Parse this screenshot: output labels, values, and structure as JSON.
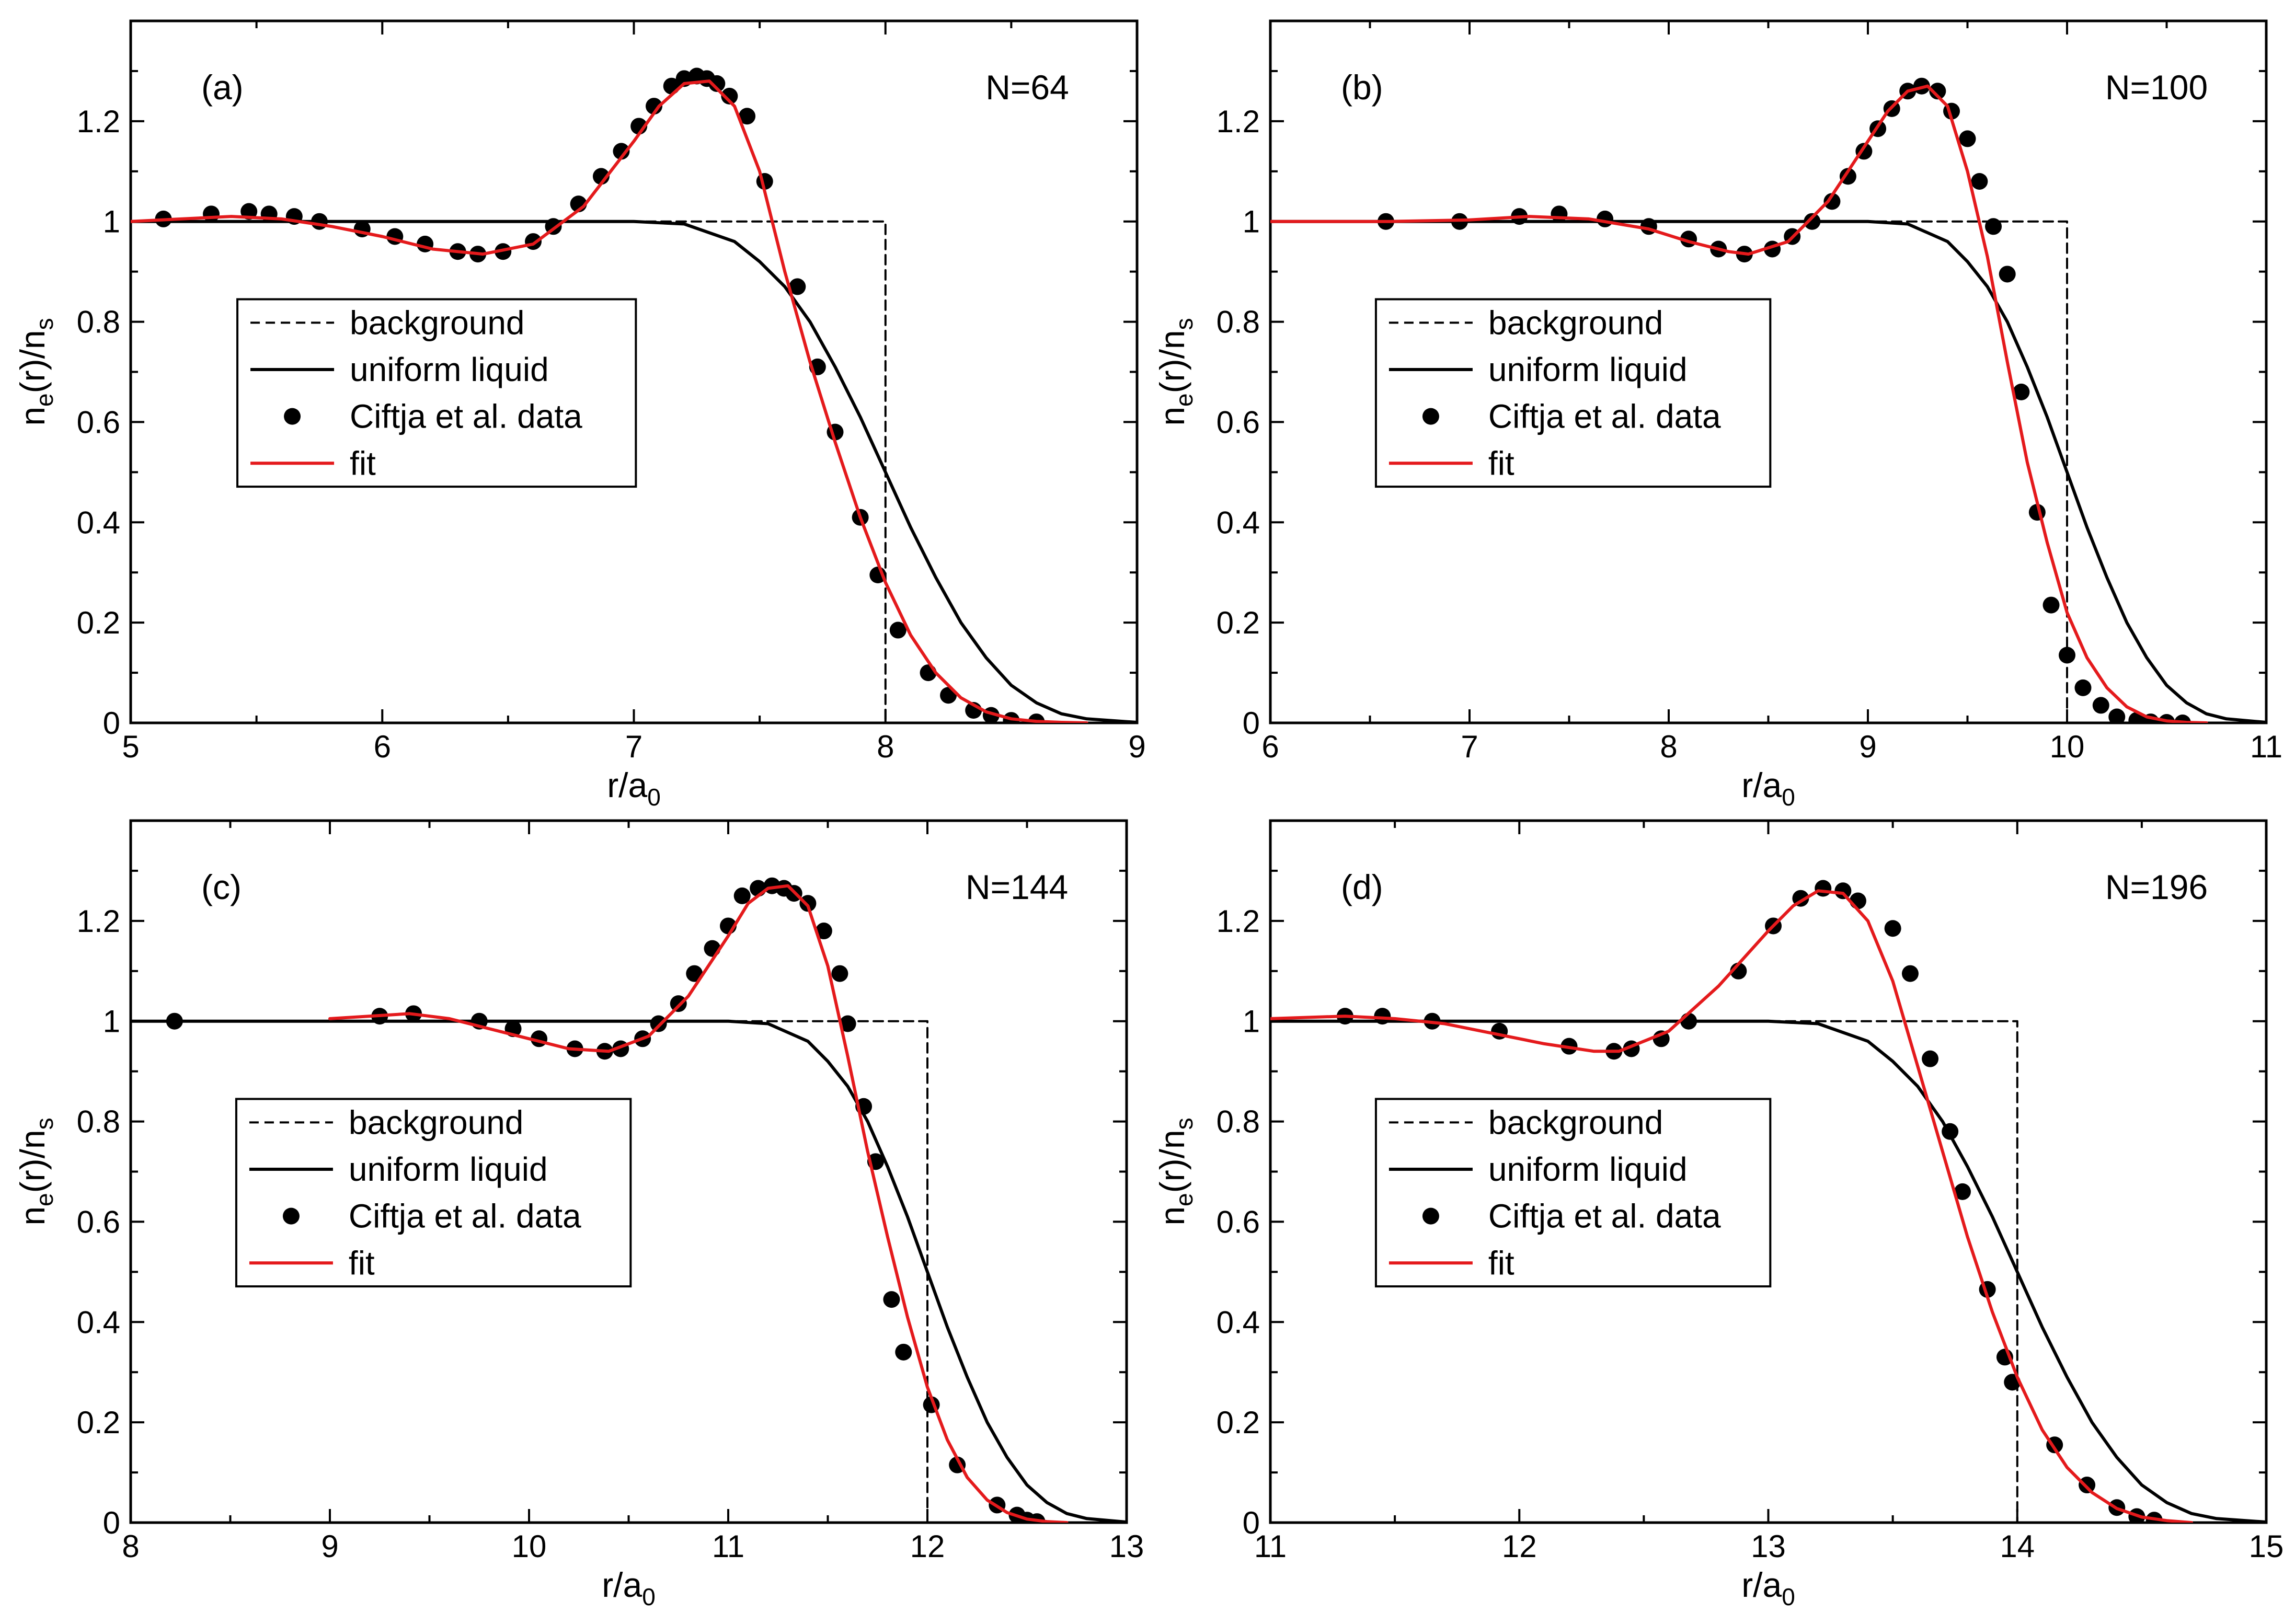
{
  "figure": {
    "colors": {
      "axis": "#000000",
      "fit": "#e41a1c",
      "liquid": "#000000",
      "background": "#000000",
      "points": "#000000"
    }
  },
  "chart_data": [
    {
      "type": "line",
      "panel_label": "(a)",
      "annotation": "N=64",
      "xlabel": "r/a0",
      "xlabel_parts": {
        "main": "r/a",
        "sub": "0"
      },
      "ylabel": "ne(r)/ns",
      "ylabel_parts": {
        "n1": "n",
        "sub1": "e",
        "mid": "(r)/n",
        "sub2": "s"
      },
      "xlim": [
        5,
        9
      ],
      "ylim": [
        0,
        1.4
      ],
      "xticks": [
        "5",
        "6",
        "7",
        "8",
        "9"
      ],
      "yticks": [
        "0",
        "0.2",
        "0.4",
        "0.6",
        "0.8",
        "1",
        "1.2"
      ],
      "legend": [
        "background",
        "uniform liquid",
        "Ciftja et al. data",
        "fit"
      ],
      "legend_position": "center-left",
      "series": [
        {
          "name": "background",
          "style": "dashed",
          "x": [
            5,
            8,
            8,
            9
          ],
          "y": [
            1,
            1,
            0,
            0
          ]
        },
        {
          "name": "uniform liquid",
          "style": "solid",
          "x": [
            5.0,
            7.0,
            7.2,
            7.4,
            7.5,
            7.6,
            7.7,
            7.8,
            7.9,
            8.0,
            8.1,
            8.2,
            8.3,
            8.4,
            8.5,
            8.6,
            8.7,
            8.8,
            9.0
          ],
          "y": [
            1.0,
            1.0,
            0.995,
            0.96,
            0.92,
            0.87,
            0.8,
            0.71,
            0.61,
            0.5,
            0.39,
            0.29,
            0.2,
            0.13,
            0.075,
            0.04,
            0.018,
            0.008,
            0.001
          ]
        },
        {
          "name": "Ciftja et al. data",
          "style": "markers",
          "x": [
            5.13,
            5.32,
            5.47,
            5.55,
            5.65,
            5.75,
            5.92,
            6.05,
            6.17,
            6.3,
            6.38,
            6.48,
            6.6,
            6.68,
            6.78,
            6.87,
            6.95,
            7.02,
            7.08,
            7.15,
            7.2,
            7.25,
            7.29,
            7.33,
            7.38,
            7.45,
            7.52,
            7.65,
            7.73,
            7.8,
            7.9,
            7.97,
            8.05,
            8.17,
            8.25,
            8.35,
            8.42,
            8.5,
            8.6
          ],
          "y": [
            1.005,
            1.015,
            1.02,
            1.015,
            1.01,
            1.0,
            0.985,
            0.97,
            0.955,
            0.94,
            0.935,
            0.94,
            0.96,
            0.99,
            1.035,
            1.09,
            1.14,
            1.19,
            1.23,
            1.27,
            1.285,
            1.29,
            1.285,
            1.275,
            1.25,
            1.21,
            1.08,
            0.87,
            0.71,
            0.58,
            0.41,
            0.295,
            0.185,
            0.1,
            0.055,
            0.025,
            0.015,
            0.005,
            0.002
          ]
        },
        {
          "name": "fit",
          "style": "solid",
          "x": [
            5.0,
            5.2,
            5.4,
            5.6,
            5.8,
            6.0,
            6.2,
            6.4,
            6.6,
            6.8,
            7.0,
            7.1,
            7.2,
            7.3,
            7.4,
            7.5,
            7.6,
            7.7,
            7.8,
            7.9,
            8.0,
            8.1,
            8.2,
            8.3,
            8.4,
            8.5,
            8.6,
            8.7,
            8.8
          ],
          "y": [
            1.0,
            1.005,
            1.01,
            1.005,
            0.99,
            0.97,
            0.945,
            0.935,
            0.955,
            1.03,
            1.16,
            1.23,
            1.275,
            1.28,
            1.23,
            1.1,
            0.9,
            0.72,
            0.56,
            0.41,
            0.28,
            0.175,
            0.1,
            0.05,
            0.022,
            0.008,
            0.003,
            0.001,
            0.0
          ]
        }
      ]
    },
    {
      "type": "line",
      "panel_label": "(b)",
      "annotation": "N=100",
      "xlabel": "r/a0",
      "xlabel_parts": {
        "main": "r/a",
        "sub": "0"
      },
      "ylabel": "ne(r)/ns",
      "ylabel_parts": {
        "n1": "n",
        "sub1": "e",
        "mid": "(r)/n",
        "sub2": "s"
      },
      "xlim": [
        6,
        11
      ],
      "ylim": [
        0,
        1.4
      ],
      "xticks": [
        "6",
        "7",
        "8",
        "9",
        "10",
        "11"
      ],
      "yticks": [
        "0",
        "0.2",
        "0.4",
        "0.6",
        "0.8",
        "1",
        "1.2"
      ],
      "legend": [
        "background",
        "uniform liquid",
        "Ciftja et al. data",
        "fit"
      ],
      "legend_position": "center-left",
      "series": [
        {
          "name": "background",
          "style": "dashed",
          "x": [
            6,
            10,
            10,
            11
          ],
          "y": [
            1,
            1,
            0,
            0
          ]
        },
        {
          "name": "uniform liquid",
          "style": "solid",
          "x": [
            6.0,
            9.0,
            9.2,
            9.4,
            9.5,
            9.6,
            9.7,
            9.8,
            9.9,
            10.0,
            10.1,
            10.2,
            10.3,
            10.4,
            10.5,
            10.6,
            10.7,
            10.8,
            11.0
          ],
          "y": [
            1.0,
            1.0,
            0.995,
            0.96,
            0.92,
            0.87,
            0.8,
            0.71,
            0.61,
            0.5,
            0.39,
            0.29,
            0.2,
            0.13,
            0.075,
            0.04,
            0.018,
            0.008,
            0.001
          ]
        },
        {
          "name": "Ciftja et al. data",
          "style": "markers",
          "x": [
            6.58,
            6.95,
            7.25,
            7.45,
            7.68,
            7.9,
            8.1,
            8.25,
            8.38,
            8.52,
            8.62,
            8.72,
            8.82,
            8.9,
            8.98,
            9.05,
            9.12,
            9.2,
            9.27,
            9.35,
            9.42,
            9.5,
            9.56,
            9.63,
            9.7,
            9.77,
            9.85,
            9.92,
            10.0,
            10.08,
            10.17,
            10.25,
            10.35,
            10.42,
            10.5,
            10.58
          ],
          "y": [
            1.0,
            1.0,
            1.01,
            1.015,
            1.005,
            0.99,
            0.965,
            0.945,
            0.935,
            0.945,
            0.97,
            1.0,
            1.04,
            1.09,
            1.14,
            1.185,
            1.225,
            1.26,
            1.27,
            1.26,
            1.22,
            1.165,
            1.08,
            0.99,
            0.895,
            0.66,
            0.42,
            0.235,
            0.135,
            0.07,
            0.035,
            0.012,
            0.005,
            0.002,
            0.001,
            0.0
          ]
        },
        {
          "name": "fit",
          "style": "solid",
          "x": [
            6.0,
            6.6,
            7.0,
            7.3,
            7.6,
            7.9,
            8.1,
            8.3,
            8.4,
            8.6,
            8.8,
            9.0,
            9.1,
            9.2,
            9.3,
            9.4,
            9.5,
            9.6,
            9.7,
            9.8,
            9.9,
            10.0,
            10.1,
            10.2,
            10.3,
            10.4,
            10.5,
            10.6,
            10.7
          ],
          "y": [
            1.0,
            1.0,
            1.003,
            1.01,
            1.005,
            0.985,
            0.96,
            0.94,
            0.935,
            0.96,
            1.04,
            1.16,
            1.22,
            1.26,
            1.27,
            1.23,
            1.1,
            0.93,
            0.72,
            0.52,
            0.36,
            0.22,
            0.13,
            0.07,
            0.032,
            0.012,
            0.004,
            0.001,
            0.0
          ]
        }
      ]
    },
    {
      "type": "line",
      "panel_label": "(c)",
      "annotation": "N=144",
      "xlabel": "r/a0",
      "xlabel_parts": {
        "main": "r/a",
        "sub": "0"
      },
      "ylabel": "ne(r)/ns",
      "ylabel_parts": {
        "n1": "n",
        "sub1": "e",
        "mid": "(r)/n",
        "sub2": "s"
      },
      "xlim": [
        8,
        13
      ],
      "ylim": [
        0,
        1.4
      ],
      "xticks": [
        "8",
        "9",
        "10",
        "11",
        "12",
        "13"
      ],
      "yticks": [
        "0",
        "0.2",
        "0.4",
        "0.6",
        "0.8",
        "1",
        "1.2"
      ],
      "legend": [
        "background",
        "uniform liquid",
        "Ciftja et al. data",
        "fit"
      ],
      "legend_position": "lower-left",
      "series": [
        {
          "name": "background",
          "style": "dashed",
          "x": [
            8,
            12,
            12,
            13
          ],
          "y": [
            1,
            1,
            0,
            0
          ]
        },
        {
          "name": "uniform liquid",
          "style": "solid",
          "x": [
            8.0,
            11.0,
            11.2,
            11.4,
            11.5,
            11.6,
            11.7,
            11.8,
            11.9,
            12.0,
            12.1,
            12.2,
            12.3,
            12.4,
            12.5,
            12.6,
            12.7,
            12.8,
            13.0
          ],
          "y": [
            1.0,
            1.0,
            0.995,
            0.96,
            0.92,
            0.87,
            0.8,
            0.71,
            0.61,
            0.5,
            0.39,
            0.29,
            0.2,
            0.13,
            0.075,
            0.04,
            0.018,
            0.008,
            0.001
          ]
        },
        {
          "name": "Ciftja et al. data",
          "style": "markers",
          "x": [
            8.22,
            9.25,
            9.42,
            9.75,
            9.92,
            10.05,
            10.23,
            10.38,
            10.46,
            10.57,
            10.65,
            10.75,
            10.83,
            10.92,
            11.0,
            11.07,
            11.15,
            11.22,
            11.28,
            11.33,
            11.4,
            11.48,
            11.56,
            11.6,
            11.68,
            11.74,
            11.82,
            11.88,
            12.02,
            12.15,
            12.35,
            12.45,
            12.5,
            12.55
          ],
          "y": [
            1.0,
            1.01,
            1.015,
            1.0,
            0.985,
            0.965,
            0.945,
            0.94,
            0.945,
            0.965,
            0.995,
            1.035,
            1.095,
            1.145,
            1.19,
            1.25,
            1.265,
            1.27,
            1.265,
            1.255,
            1.235,
            1.18,
            1.095,
            0.995,
            0.83,
            0.72,
            0.445,
            0.34,
            0.235,
            0.115,
            0.035,
            0.015,
            0.005,
            0.002
          ]
        },
        {
          "name": "fit",
          "style": "solid",
          "x": [
            9.0,
            9.2,
            9.4,
            9.6,
            9.8,
            10.0,
            10.2,
            10.4,
            10.6,
            10.8,
            11.0,
            11.1,
            11.2,
            11.3,
            11.4,
            11.5,
            11.6,
            11.7,
            11.8,
            11.9,
            12.0,
            12.1,
            12.2,
            12.3,
            12.4,
            12.5,
            12.6,
            12.7
          ],
          "y": [
            1.005,
            1.01,
            1.015,
            1.005,
            0.985,
            0.965,
            0.945,
            0.94,
            0.97,
            1.05,
            1.17,
            1.235,
            1.265,
            1.27,
            1.23,
            1.11,
            0.93,
            0.74,
            0.57,
            0.41,
            0.27,
            0.165,
            0.09,
            0.045,
            0.02,
            0.007,
            0.002,
            0.0
          ]
        }
      ]
    },
    {
      "type": "line",
      "panel_label": "(d)",
      "annotation": "N=196",
      "xlabel": "r/a0",
      "xlabel_parts": {
        "main": "r/a",
        "sub": "0"
      },
      "ylabel": "ne(r)/ns",
      "ylabel_parts": {
        "n1": "n",
        "sub1": "e",
        "mid": "(r)/n",
        "sub2": "s"
      },
      "xlim": [
        11,
        15
      ],
      "ylim": [
        0,
        1.4
      ],
      "xticks": [
        "11",
        "12",
        "13",
        "14",
        "15"
      ],
      "yticks": [
        "0",
        "0.2",
        "0.4",
        "0.6",
        "0.8",
        "1",
        "1.2"
      ],
      "legend": [
        "background",
        "uniform liquid",
        "Ciftja et al. data",
        "fit"
      ],
      "legend_position": "lower-left",
      "series": [
        {
          "name": "background",
          "style": "dashed",
          "x": [
            11,
            14,
            14,
            15
          ],
          "y": [
            1,
            1,
            0,
            0
          ]
        },
        {
          "name": "uniform liquid",
          "style": "solid",
          "x": [
            11.0,
            13.0,
            13.2,
            13.4,
            13.5,
            13.6,
            13.7,
            13.8,
            13.9,
            14.0,
            14.1,
            14.2,
            14.3,
            14.4,
            14.5,
            14.6,
            14.7,
            14.8,
            15.0
          ],
          "y": [
            1.0,
            1.0,
            0.995,
            0.96,
            0.92,
            0.87,
            0.8,
            0.71,
            0.61,
            0.5,
            0.39,
            0.29,
            0.2,
            0.13,
            0.075,
            0.04,
            0.018,
            0.008,
            0.001
          ]
        },
        {
          "name": "Ciftja et al. data",
          "style": "markers",
          "x": [
            11.3,
            11.45,
            11.65,
            11.92,
            12.2,
            12.38,
            12.45,
            12.57,
            12.68,
            12.88,
            13.02,
            13.13,
            13.22,
            13.3,
            13.36,
            13.5,
            13.57,
            13.65,
            13.73,
            13.78,
            13.88,
            13.95,
            13.98,
            14.15,
            14.28,
            14.4,
            14.48,
            14.55
          ],
          "y": [
            1.01,
            1.01,
            1.0,
            0.98,
            0.95,
            0.94,
            0.945,
            0.965,
            1.0,
            1.1,
            1.19,
            1.245,
            1.265,
            1.26,
            1.24,
            1.185,
            1.095,
            0.925,
            0.78,
            0.66,
            0.465,
            0.33,
            0.28,
            0.155,
            0.075,
            0.03,
            0.012,
            0.005
          ]
        },
        {
          "name": "fit",
          "style": "solid",
          "x": [
            11.0,
            11.3,
            11.5,
            11.7,
            11.9,
            12.1,
            12.3,
            12.4,
            12.6,
            12.8,
            13.0,
            13.1,
            13.2,
            13.3,
            13.4,
            13.5,
            13.6,
            13.7,
            13.8,
            13.9,
            14.0,
            14.1,
            14.2,
            14.3,
            14.4,
            14.5,
            14.6,
            14.7
          ],
          "y": [
            1.005,
            1.01,
            1.005,
            0.995,
            0.975,
            0.955,
            0.94,
            0.94,
            0.98,
            1.07,
            1.18,
            1.23,
            1.26,
            1.255,
            1.2,
            1.08,
            0.91,
            0.74,
            0.57,
            0.42,
            0.29,
            0.185,
            0.11,
            0.06,
            0.028,
            0.011,
            0.004,
            0.0
          ]
        }
      ]
    }
  ]
}
